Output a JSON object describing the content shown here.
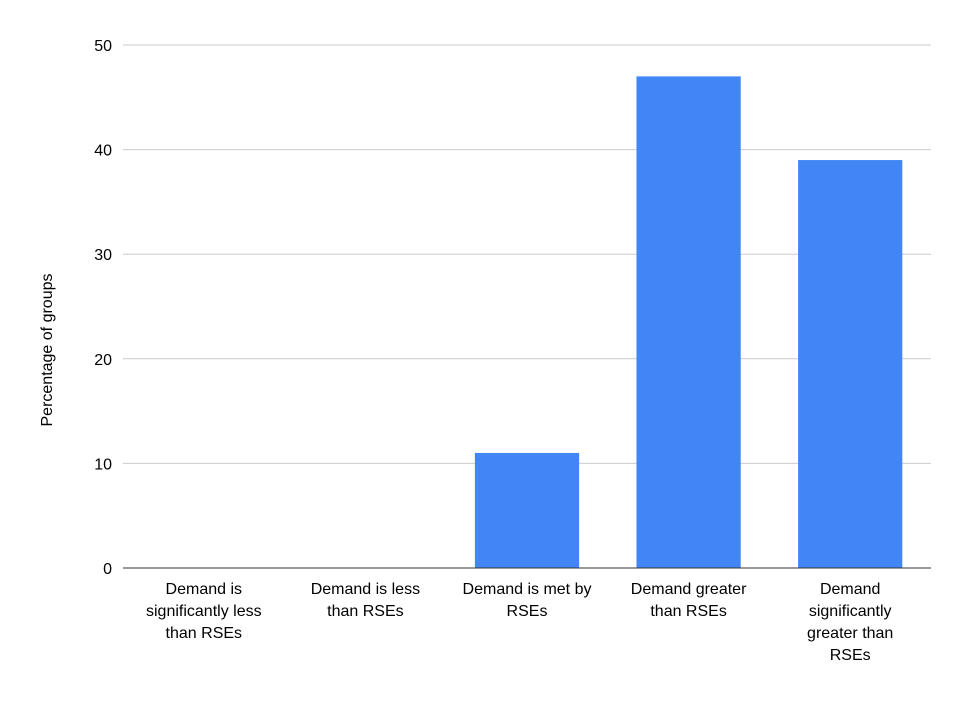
{
  "chart_data": {
    "type": "bar",
    "title": "",
    "xlabel": "",
    "ylabel": "Percentage of groups",
    "ylim": [
      0,
      50
    ],
    "yticks": [
      0,
      10,
      20,
      30,
      40,
      50
    ],
    "grid": true,
    "categories": [
      "Demand is significantly less than RSEs",
      "Demand is less than RSEs",
      "Demand is met by RSEs",
      "Demand greater than RSEs",
      "Demand significantly greater than RSEs"
    ],
    "category_lines": [
      [
        "Demand is",
        "significantly less",
        "than RSEs"
      ],
      [
        "Demand is less",
        "than RSEs"
      ],
      [
        "Demand is met by",
        "RSEs"
      ],
      [
        "Demand greater",
        "than RSEs"
      ],
      [
        "Demand",
        "significantly",
        "greater than",
        "RSEs"
      ]
    ],
    "values": [
      0,
      0,
      11,
      47,
      39
    ],
    "bar_color": "#4285f4",
    "grid_color": "#cccccc",
    "axis_color": "#333333"
  }
}
